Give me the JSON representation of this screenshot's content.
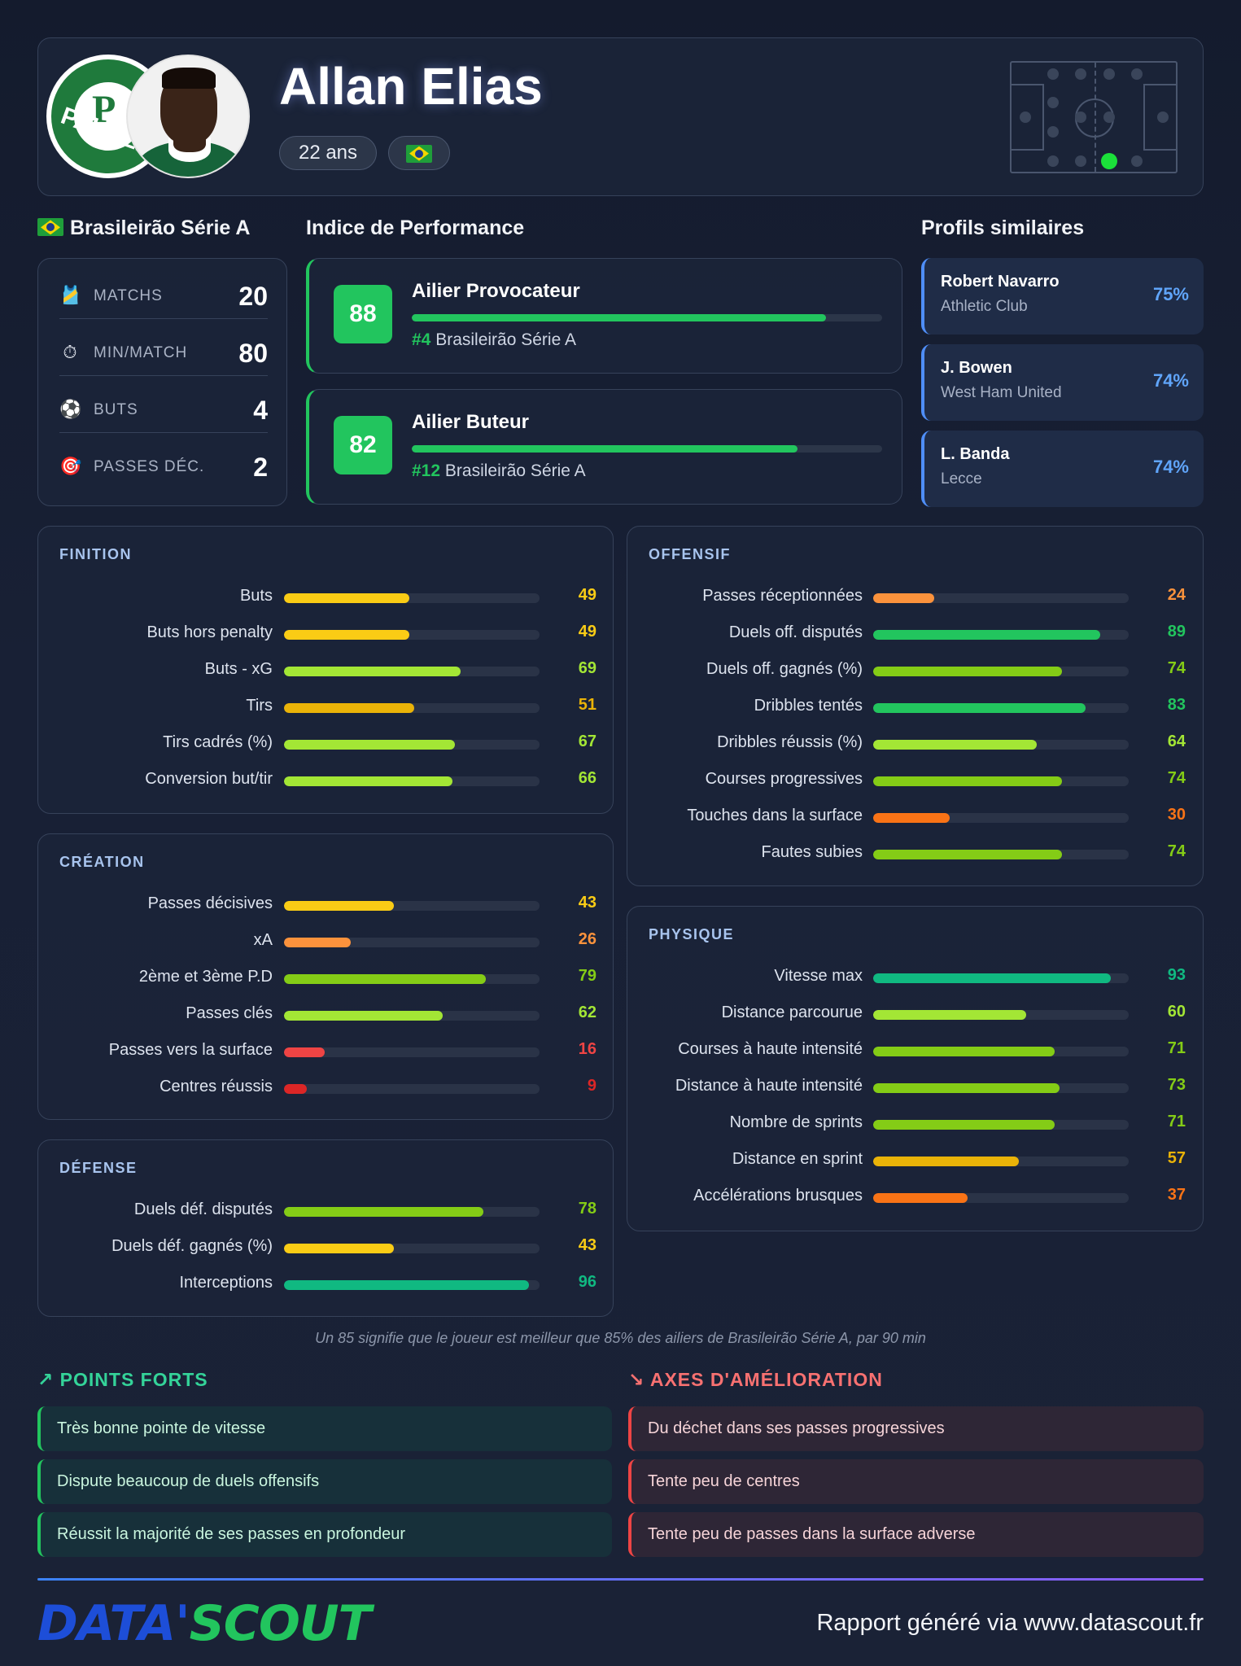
{
  "player": {
    "name": "Allan Elias",
    "age": "22 ans",
    "club": "PALMEIRAS"
  },
  "league": {
    "name": "Brasileirão Série A",
    "stats": [
      {
        "icon": "jersey-icon",
        "glyph": "🎽",
        "label": "MATCHS",
        "value": "20"
      },
      {
        "icon": "stopwatch-icon",
        "glyph": "⏱",
        "label": "MIN/MATCH",
        "value": "80"
      },
      {
        "icon": "ball-icon",
        "glyph": "⚽",
        "label": "BUTS",
        "value": "4"
      },
      {
        "icon": "target-icon",
        "glyph": "🎯",
        "label": "PASSES DÉC.",
        "value": "2"
      }
    ]
  },
  "performance": {
    "title": "Indice de Performance",
    "items": [
      {
        "score": "88",
        "role": "Ailier Provocateur",
        "rank": "#4",
        "league": "Brasileirão Série A",
        "fill": 0.88
      },
      {
        "score": "82",
        "role": "Ailier Buteur",
        "rank": "#12",
        "league": "Brasileirão Série A",
        "fill": 0.82
      }
    ]
  },
  "similar": {
    "title": "Profils similaires",
    "items": [
      {
        "name": "Robert Navarro",
        "club": "Athletic Club",
        "pct": "75%"
      },
      {
        "name": "J. Bowen",
        "club": "West Ham United",
        "pct": "74%"
      },
      {
        "name": "L. Banda",
        "club": "Lecce",
        "pct": "74%"
      }
    ]
  },
  "panels": {
    "finition": {
      "title": "FINITION",
      "metrics": [
        {
          "label": "Buts",
          "value": 49,
          "color": "#facc15"
        },
        {
          "label": "Buts hors penalty",
          "value": 49,
          "color": "#facc15"
        },
        {
          "label": "Buts - xG",
          "value": 69,
          "color": "#a3e635"
        },
        {
          "label": "Tirs",
          "value": 51,
          "color": "#eab308"
        },
        {
          "label": "Tirs cadrés (%)",
          "value": 67,
          "color": "#a3e635"
        },
        {
          "label": "Conversion but/tir",
          "value": 66,
          "color": "#a3e635"
        }
      ]
    },
    "creation": {
      "title": "CRÉATION",
      "metrics": [
        {
          "label": "Passes décisives",
          "value": 43,
          "color": "#facc15"
        },
        {
          "label": "xA",
          "value": 26,
          "color": "#fb923c"
        },
        {
          "label": "2ème et 3ème P.D",
          "value": 79,
          "color": "#84cc16"
        },
        {
          "label": "Passes clés",
          "value": 62,
          "color": "#a3e635"
        },
        {
          "label": "Passes vers la surface",
          "value": 16,
          "color": "#ef4444"
        },
        {
          "label": "Centres réussis",
          "value": 9,
          "color": "#dc2626"
        }
      ]
    },
    "defense": {
      "title": "DÉFENSE",
      "metrics": [
        {
          "label": "Duels déf. disputés",
          "value": 78,
          "color": "#84cc16"
        },
        {
          "label": "Duels déf. gagnés (%)",
          "value": 43,
          "color": "#facc15"
        },
        {
          "label": "Interceptions",
          "value": 96,
          "color": "#10b981"
        }
      ]
    },
    "offensif": {
      "title": "OFFENSIF",
      "metrics": [
        {
          "label": "Passes réceptionnées",
          "value": 24,
          "color": "#fb923c"
        },
        {
          "label": "Duels off. disputés",
          "value": 89,
          "color": "#22c55e"
        },
        {
          "label": "Duels off. gagnés (%)",
          "value": 74,
          "color": "#84cc16"
        },
        {
          "label": "Dribbles tentés",
          "value": 83,
          "color": "#22c55e"
        },
        {
          "label": "Dribbles réussis (%)",
          "value": 64,
          "color": "#a3e635"
        },
        {
          "label": "Courses progressives",
          "value": 74,
          "color": "#84cc16"
        },
        {
          "label": "Touches dans la surface",
          "value": 30,
          "color": "#f97316"
        },
        {
          "label": "Fautes subies",
          "value": 74,
          "color": "#84cc16"
        }
      ]
    },
    "physique": {
      "title": "PHYSIQUE",
      "metrics": [
        {
          "label": "Vitesse max",
          "value": 93,
          "color": "#10b981"
        },
        {
          "label": "Distance parcourue",
          "value": 60,
          "color": "#a3e635"
        },
        {
          "label": "Courses à haute intensité",
          "value": 71,
          "color": "#84cc16"
        },
        {
          "label": "Distance à haute intensité",
          "value": 73,
          "color": "#84cc16"
        },
        {
          "label": "Nombre de sprints",
          "value": 71,
          "color": "#84cc16"
        },
        {
          "label": "Distance en sprint",
          "value": 57,
          "color": "#eab308"
        },
        {
          "label": "Accélérations brusques",
          "value": 37,
          "color": "#f97316"
        }
      ]
    }
  },
  "footnote": "Un 85 signifie que le joueur est meilleur que 85% des ailiers de Brasileirão Série A, par 90 min",
  "strengths": {
    "title": "POINTS FORTS",
    "items": [
      "Très bonne pointe de vitesse",
      "Dispute beaucoup de duels offensifs",
      "Réussit la majorité de ses passes en profondeur"
    ]
  },
  "improvements": {
    "title": "AXES D'AMÉLIORATION",
    "items": [
      "Du déchet dans ses passes progressives",
      "Tente peu de centres",
      "Tente peu de passes dans la surface adverse"
    ]
  },
  "footer": {
    "brand_part1": "DATA'",
    "brand_part2": "SCOUT",
    "text": "Rapport généré via www.datascout.fr"
  }
}
